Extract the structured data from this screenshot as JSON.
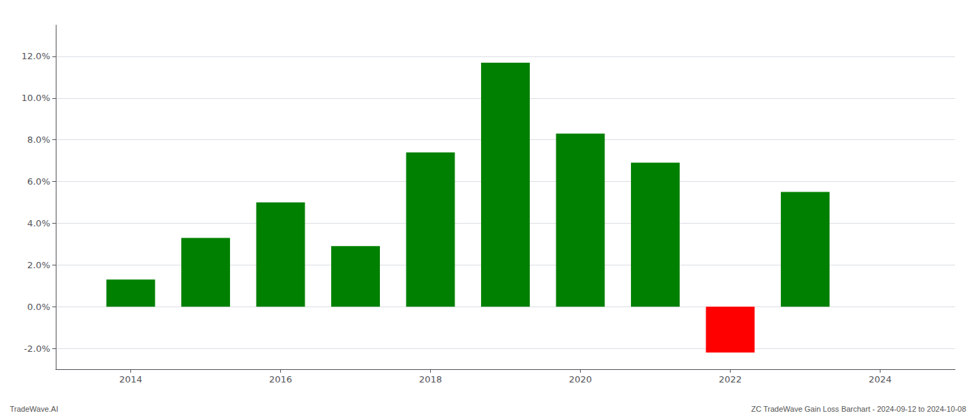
{
  "chart_data": {
    "type": "bar",
    "x": [
      2014,
      2015,
      2016,
      2017,
      2018,
      2019,
      2020,
      2021,
      2022,
      2023
    ],
    "values": [
      0.013,
      0.033,
      0.05,
      0.029,
      0.074,
      0.117,
      0.083,
      0.069,
      -0.022,
      0.055
    ],
    "colors": [
      "#008000",
      "#008000",
      "#008000",
      "#008000",
      "#008000",
      "#008000",
      "#008000",
      "#008000",
      "#ff0000",
      "#008000"
    ],
    "xlim": [
      2013,
      2025
    ],
    "xticks": [
      2014,
      2016,
      2018,
      2020,
      2022,
      2024
    ],
    "ylim": [
      -0.03,
      0.135
    ],
    "yticks": [
      {
        "value": -0.02,
        "label": "-2.0%"
      },
      {
        "value": 0.0,
        "label": "0.0%"
      },
      {
        "value": 0.02,
        "label": "2.0%"
      },
      {
        "value": 0.04,
        "label": "4.0%"
      },
      {
        "value": 0.06,
        "label": "6.0%"
      },
      {
        "value": 0.08,
        "label": "8.0%"
      },
      {
        "value": 0.1,
        "label": "10.0%"
      },
      {
        "value": 0.12,
        "label": "12.0%"
      }
    ],
    "grid": true,
    "annotations": [
      "TradeWave.AI",
      "ZC TradeWave Gain Loss Barchart - 2024-09-12 to 2024-10-08"
    ]
  }
}
